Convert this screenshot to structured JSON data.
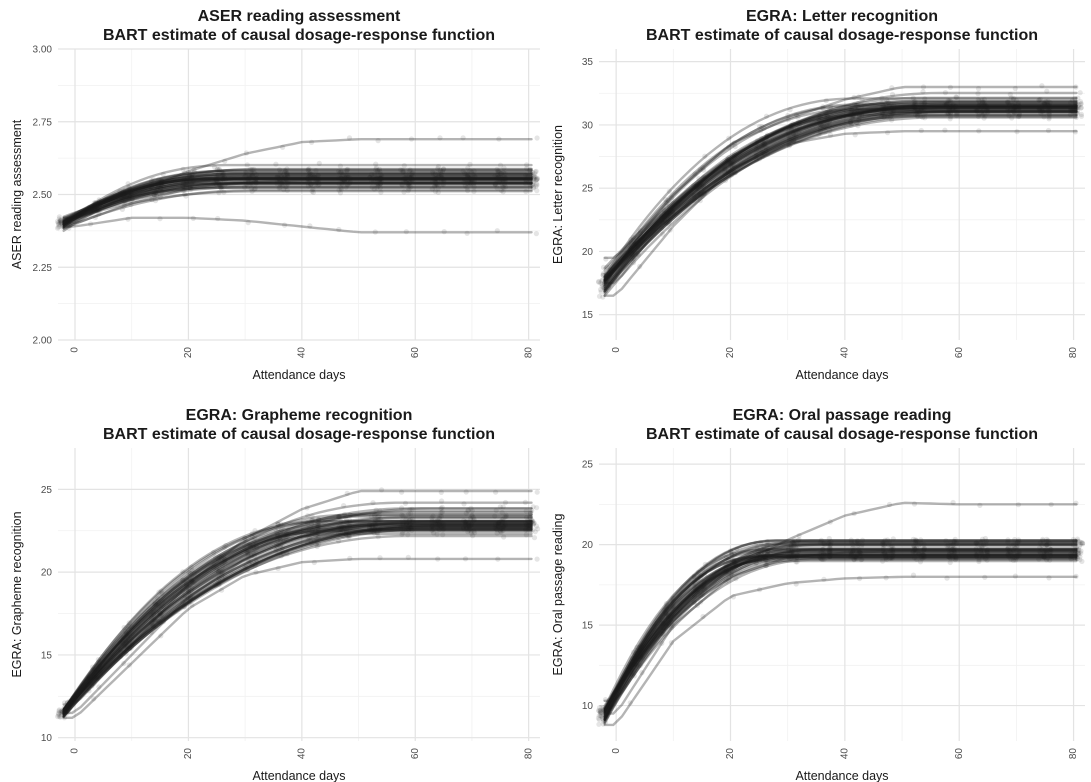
{
  "chart_data": [
    {
      "type": "line",
      "title": "ASER reading assessment",
      "subtitle": "BART estimate of causal dosage-response function",
      "xlabel": "Attendance days",
      "ylabel": "ASER reading assessment",
      "xlim": [
        -3,
        82
      ],
      "ylim": [
        2.0,
        3.0
      ],
      "xticks": [
        "0",
        "20",
        "40",
        "60",
        "80"
      ],
      "yticks": [
        "2.00",
        "2.25",
        "2.50",
        "2.75",
        "3.00"
      ],
      "curve_model": {
        "start": 2.4,
        "start_spread": 0.05,
        "plateau": 2.55,
        "plateau_spread": 0.14,
        "saturation_day": 30,
        "n_curves": 40
      },
      "series": [
        {
          "x": [
            0,
            10,
            20,
            30,
            40,
            50,
            60,
            70,
            80
          ],
          "values": [
            2.4,
            2.47,
            2.52,
            2.54,
            2.55,
            2.55,
            2.55,
            2.55,
            2.55
          ]
        },
        {
          "x": [
            0,
            10,
            20,
            30,
            40,
            50,
            60,
            70,
            80
          ],
          "values": [
            2.42,
            2.5,
            2.58,
            2.64,
            2.68,
            2.69,
            2.69,
            2.69,
            2.69
          ]
        },
        {
          "x": [
            0,
            10,
            20,
            30,
            40,
            50,
            60,
            70,
            80
          ],
          "values": [
            2.39,
            2.42,
            2.42,
            2.41,
            2.39,
            2.37,
            2.37,
            2.37,
            2.37
          ]
        }
      ],
      "grid": true,
      "legend": "none"
    },
    {
      "type": "line",
      "title": "EGRA: Letter recognition",
      "subtitle": "BART estimate of causal dosage-response function",
      "xlabel": "Attendance days",
      "ylabel": "EGRA: Letter recognition",
      "xlim": [
        -3,
        82
      ],
      "ylim": [
        13,
        36
      ],
      "xticks": [
        "0",
        "20",
        "40",
        "60",
        "80"
      ],
      "yticks": [
        "15",
        "20",
        "25",
        "30",
        "35"
      ],
      "curve_model": {
        "start": 17.5,
        "start_spread": 2.5,
        "plateau": 31.5,
        "plateau_spread": 3.2,
        "saturation_day": 52,
        "n_curves": 40
      },
      "series": [
        {
          "x": [
            0,
            10,
            20,
            30,
            40,
            50,
            60,
            70,
            80
          ],
          "values": [
            17.5,
            23.5,
            27.5,
            29.8,
            31.0,
            31.5,
            31.5,
            31.5,
            31.5
          ]
        },
        {
          "x": [
            0,
            10,
            20,
            30,
            40,
            50,
            60,
            70,
            80
          ],
          "values": [
            19.5,
            24.5,
            28.5,
            30.5,
            32.0,
            33.0,
            33.0,
            33.0,
            33.0
          ]
        },
        {
          "x": [
            0,
            10,
            20,
            30,
            40,
            50,
            60,
            70,
            80
          ],
          "values": [
            16.5,
            22.0,
            26.5,
            28.5,
            29.3,
            29.5,
            29.5,
            29.5,
            29.5
          ]
        }
      ],
      "grid": true,
      "legend": "none"
    },
    {
      "type": "line",
      "title": "EGRA: Grapheme recognition",
      "subtitle": "BART estimate of causal dosage-response function",
      "xlabel": "Attendance days",
      "ylabel": "EGRA: Grapheme recognition",
      "xlim": [
        -3,
        82
      ],
      "ylim": [
        9.8,
        27.5
      ],
      "xticks": [
        "0",
        "20",
        "40",
        "60",
        "80"
      ],
      "yticks": [
        "10",
        "15",
        "20",
        "25"
      ],
      "curve_model": {
        "start": 11.5,
        "start_spread": 0.8,
        "plateau": 22.9,
        "plateau_spread": 4.0,
        "saturation_day": 55,
        "n_curves": 40
      },
      "series": [
        {
          "x": [
            0,
            10,
            20,
            30,
            40,
            50,
            60,
            70,
            80
          ],
          "values": [
            11.5,
            15.0,
            18.5,
            20.8,
            22.2,
            22.9,
            22.9,
            22.9,
            22.9
          ]
        },
        {
          "x": [
            0,
            10,
            20,
            30,
            40,
            50,
            60,
            70,
            80
          ],
          "values": [
            12.0,
            15.6,
            19.3,
            22.0,
            23.8,
            24.9,
            24.9,
            24.9,
            24.9
          ]
        },
        {
          "x": [
            0,
            10,
            20,
            30,
            40,
            50,
            60,
            70,
            80
          ],
          "values": [
            11.2,
            14.5,
            17.8,
            19.8,
            20.6,
            20.8,
            20.8,
            20.8,
            20.8
          ]
        }
      ],
      "grid": true,
      "legend": "none"
    },
    {
      "type": "line",
      "title": "EGRA: Oral passage reading",
      "subtitle": "BART estimate of causal dosage-response function",
      "xlabel": "Attendance days",
      "ylabel": "EGRA: Oral passage reading",
      "xlim": [
        -3,
        82
      ],
      "ylim": [
        7.8,
        26
      ],
      "xticks": [
        "0",
        "20",
        "40",
        "60",
        "80"
      ],
      "yticks": [
        "10",
        "15",
        "20",
        "25"
      ],
      "curve_model": {
        "start": 9.5,
        "start_spread": 1.8,
        "plateau": 19.6,
        "plateau_spread": 3.2,
        "saturation_day": 32,
        "n_curves": 40
      },
      "series": [
        {
          "x": [
            0,
            10,
            20,
            30,
            40,
            50,
            60,
            70,
            80
          ],
          "values": [
            9.5,
            15.0,
            18.0,
            19.2,
            19.5,
            19.6,
            19.6,
            19.6,
            19.6
          ]
        },
        {
          "x": [
            0,
            10,
            20,
            30,
            40,
            50,
            60,
            70,
            80
          ],
          "values": [
            10.3,
            15.5,
            18.5,
            20.3,
            21.8,
            22.6,
            22.5,
            22.5,
            22.5
          ]
        },
        {
          "x": [
            0,
            10,
            20,
            30,
            40,
            50,
            60,
            70,
            80
          ],
          "values": [
            8.8,
            14.0,
            16.8,
            17.6,
            17.9,
            18.0,
            18.0,
            18.0,
            18.0
          ]
        }
      ],
      "grid": true,
      "legend": "none"
    }
  ]
}
